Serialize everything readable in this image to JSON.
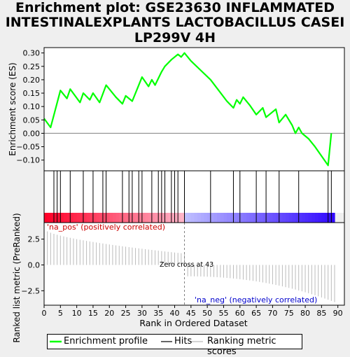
{
  "title_lines": [
    "Enrichment plot: GSE23630 INFLAMMATED",
    "INTESTINALEXPLANTS LACTOBACILLUS CASEI",
    "LP299V 4H"
  ],
  "colors": {
    "background": "#efefef",
    "es_line": "#00ff00",
    "hits": "#000000",
    "metric_bars": "#bbbbbb",
    "pos_label": "#cc0000",
    "neg_label": "#0000cc",
    "zero_line": "#808080"
  },
  "legend": [
    {
      "label": "Enrichment profile",
      "icon": "green-line-icon"
    },
    {
      "label": "Hits",
      "icon": "black-line-icon"
    },
    {
      "label": "Ranking metric scores",
      "icon": "gray-line-icon"
    }
  ],
  "annotations": {
    "pos": "'na_pos' (positively correlated)",
    "neg": "'na_neg' (negatively correlated)",
    "zero_cross": "Zero cross at 43"
  },
  "chart_data": [
    {
      "type": "line",
      "ylabel": "Enrichment score (ES)",
      "xlim": [
        0,
        92
      ],
      "ylim": [
        -0.14,
        0.32
      ],
      "yticks": [
        -0.1,
        -0.05,
        0.0,
        0.05,
        0.1,
        0.15,
        0.2,
        0.25,
        0.3
      ],
      "series": [
        {
          "x": [
            0,
            2,
            3,
            5,
            7,
            8,
            11,
            12,
            14,
            15,
            17,
            19,
            22,
            24,
            25,
            27,
            28,
            30,
            32,
            33,
            34,
            36,
            37,
            39,
            41,
            42,
            43,
            45,
            48,
            51,
            56,
            58,
            59,
            60,
            61,
            63,
            65,
            67,
            68,
            71,
            72,
            74,
            76,
            77,
            78,
            79,
            81,
            83,
            85,
            87,
            88
          ],
          "y": [
            0.055,
            0.022,
            0.068,
            0.16,
            0.13,
            0.165,
            0.115,
            0.15,
            0.125,
            0.15,
            0.115,
            0.18,
            0.135,
            0.11,
            0.14,
            0.12,
            0.15,
            0.21,
            0.175,
            0.2,
            0.18,
            0.23,
            0.25,
            0.275,
            0.295,
            0.285,
            0.3,
            0.27,
            0.235,
            0.2,
            0.12,
            0.095,
            0.125,
            0.11,
            0.135,
            0.105,
            0.07,
            0.095,
            0.06,
            0.09,
            0.04,
            0.07,
            0.03,
            0.0,
            0.022,
            0.0,
            -0.02,
            -0.05,
            -0.085,
            -0.12,
            0.0
          ]
        }
      ]
    },
    {
      "type": "hits",
      "x": [
        3,
        4,
        5,
        8,
        12,
        15,
        18,
        19,
        24,
        26,
        27,
        29,
        30,
        33,
        35,
        36,
        37,
        39,
        40,
        41,
        43,
        51,
        58,
        60,
        65,
        68,
        72,
        78,
        87,
        88
      ]
    },
    {
      "type": "bar",
      "ylabel": "Ranked list metric (PreRanked)",
      "xlabel": "Rank in Ordered Dataset",
      "xlim": [
        0,
        92
      ],
      "xticks": [
        0,
        5,
        10,
        15,
        20,
        25,
        30,
        35,
        40,
        45,
        50,
        55,
        60,
        65,
        70,
        75,
        80,
        85,
        90
      ],
      "ylim": [
        -3.9,
        4.1
      ],
      "yticks": [
        -2.5,
        0.0,
        2.5
      ],
      "n": 89,
      "first_value": 3.5,
      "last_value": -3.6,
      "zero_cross": 43
    }
  ]
}
